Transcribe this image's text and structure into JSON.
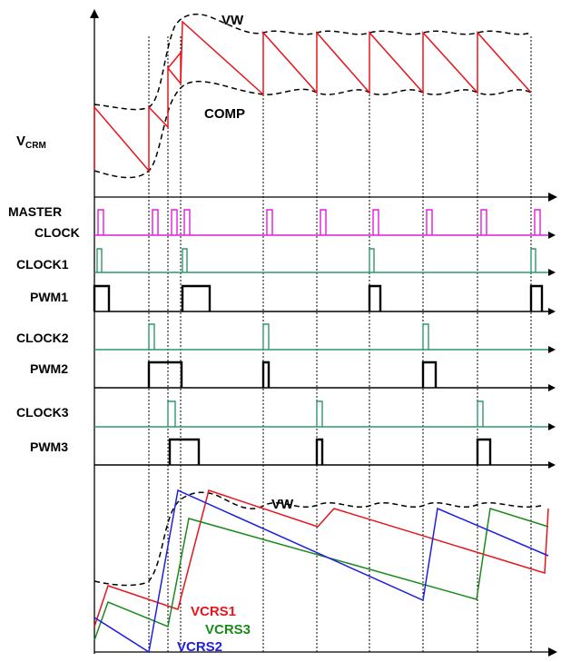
{
  "labels": {
    "vw_top": "VW",
    "comp": "COMP",
    "vcrm_main": "V",
    "vcrm_sub": "CRM",
    "master": "MASTER",
    "clock": "CLOCK",
    "clock1": "CLOCK1",
    "pwm1": "PWM1",
    "clock2": "CLOCK2",
    "pwm2": "PWM2",
    "clock3": "CLOCK3",
    "pwm3": "PWM3",
    "vw_bottom": "VW",
    "vcrs1": "VCRS1",
    "vcrs3": "VCRS3",
    "vcrs2": "VCRS2"
  },
  "colors": {
    "axis": "#000000",
    "vcrm": "#e8141c",
    "envelope": "#000000",
    "master_clock": "#e01be0",
    "clocks": "#2c9a6c",
    "pwm": "#000000",
    "vcrs1": "#e8141c",
    "vcrs2": "#1f1fe0",
    "vcrs3": "#1b8a1b"
  }
}
